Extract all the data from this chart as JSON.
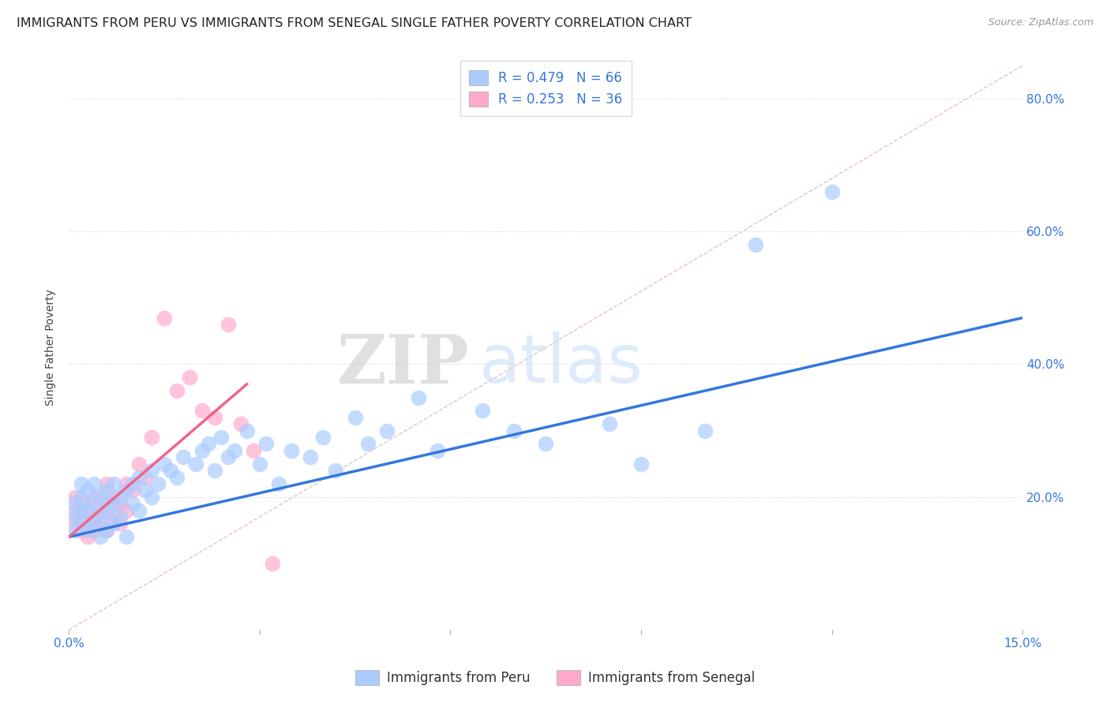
{
  "title": "IMMIGRANTS FROM PERU VS IMMIGRANTS FROM SENEGAL SINGLE FATHER POVERTY CORRELATION CHART",
  "source": "Source: ZipAtlas.com",
  "ylabel": "Single Father Poverty",
  "legend_peru_stat": "R = 0.479   N = 66",
  "legend_senegal_stat": "R = 0.253   N = 36",
  "legend_peru_bottom": "Immigrants from Peru",
  "legend_senegal_bottom": "Immigrants from Senegal",
  "peru_color": "#aaccff",
  "senegal_color": "#ffaacc",
  "peru_line_color": "#3377dd",
  "senegal_line_color": "#ee6688",
  "diagonal_color": "#ddaaaa",
  "watermark_zip": "ZIP",
  "watermark_atlas": "atlas",
  "background_color": "#ffffff",
  "grid_color": "#e8e8e8",
  "xlim": [
    0.0,
    0.15
  ],
  "ylim": [
    0.0,
    0.85
  ],
  "peru_scatter_x": [
    0.001,
    0.001,
    0.001,
    0.002,
    0.002,
    0.002,
    0.002,
    0.003,
    0.003,
    0.003,
    0.004,
    0.004,
    0.004,
    0.005,
    0.005,
    0.005,
    0.006,
    0.006,
    0.006,
    0.007,
    0.007,
    0.007,
    0.008,
    0.008,
    0.009,
    0.009,
    0.01,
    0.01,
    0.011,
    0.011,
    0.012,
    0.013,
    0.013,
    0.014,
    0.015,
    0.016,
    0.017,
    0.018,
    0.02,
    0.021,
    0.022,
    0.023,
    0.024,
    0.025,
    0.026,
    0.028,
    0.03,
    0.031,
    0.033,
    0.035,
    0.038,
    0.04,
    0.042,
    0.045,
    0.047,
    0.05,
    0.055,
    0.058,
    0.065,
    0.07,
    0.075,
    0.085,
    0.09,
    0.1,
    0.108,
    0.12
  ],
  "peru_scatter_y": [
    0.15,
    0.17,
    0.19,
    0.16,
    0.18,
    0.2,
    0.22,
    0.15,
    0.18,
    0.21,
    0.16,
    0.19,
    0.22,
    0.17,
    0.2,
    0.14,
    0.18,
    0.21,
    0.15,
    0.19,
    0.22,
    0.16,
    0.2,
    0.17,
    0.21,
    0.14,
    0.19,
    0.22,
    0.18,
    0.23,
    0.21,
    0.2,
    0.24,
    0.22,
    0.25,
    0.24,
    0.23,
    0.26,
    0.25,
    0.27,
    0.28,
    0.24,
    0.29,
    0.26,
    0.27,
    0.3,
    0.25,
    0.28,
    0.22,
    0.27,
    0.26,
    0.29,
    0.24,
    0.32,
    0.28,
    0.3,
    0.35,
    0.27,
    0.33,
    0.3,
    0.28,
    0.31,
    0.25,
    0.3,
    0.58,
    0.66
  ],
  "senegal_scatter_x": [
    0.001,
    0.001,
    0.001,
    0.002,
    0.002,
    0.002,
    0.003,
    0.003,
    0.003,
    0.004,
    0.004,
    0.004,
    0.005,
    0.005,
    0.006,
    0.006,
    0.006,
    0.007,
    0.007,
    0.008,
    0.008,
    0.009,
    0.009,
    0.01,
    0.011,
    0.012,
    0.013,
    0.015,
    0.017,
    0.019,
    0.021,
    0.023,
    0.025,
    0.027,
    0.029,
    0.032
  ],
  "senegal_scatter_y": [
    0.16,
    0.18,
    0.2,
    0.15,
    0.17,
    0.19,
    0.16,
    0.18,
    0.14,
    0.15,
    0.17,
    0.2,
    0.16,
    0.18,
    0.15,
    0.19,
    0.22,
    0.17,
    0.2,
    0.16,
    0.19,
    0.18,
    0.22,
    0.21,
    0.25,
    0.23,
    0.29,
    0.47,
    0.36,
    0.38,
    0.33,
    0.32,
    0.46,
    0.31,
    0.27,
    0.1
  ],
  "peru_line_x0": 0.0,
  "peru_line_y0": 0.14,
  "peru_line_x1": 0.15,
  "peru_line_y1": 0.47,
  "senegal_line_x0": 0.0,
  "senegal_line_y0": 0.14,
  "senegal_line_x1": 0.028,
  "senegal_line_y1": 0.37
}
